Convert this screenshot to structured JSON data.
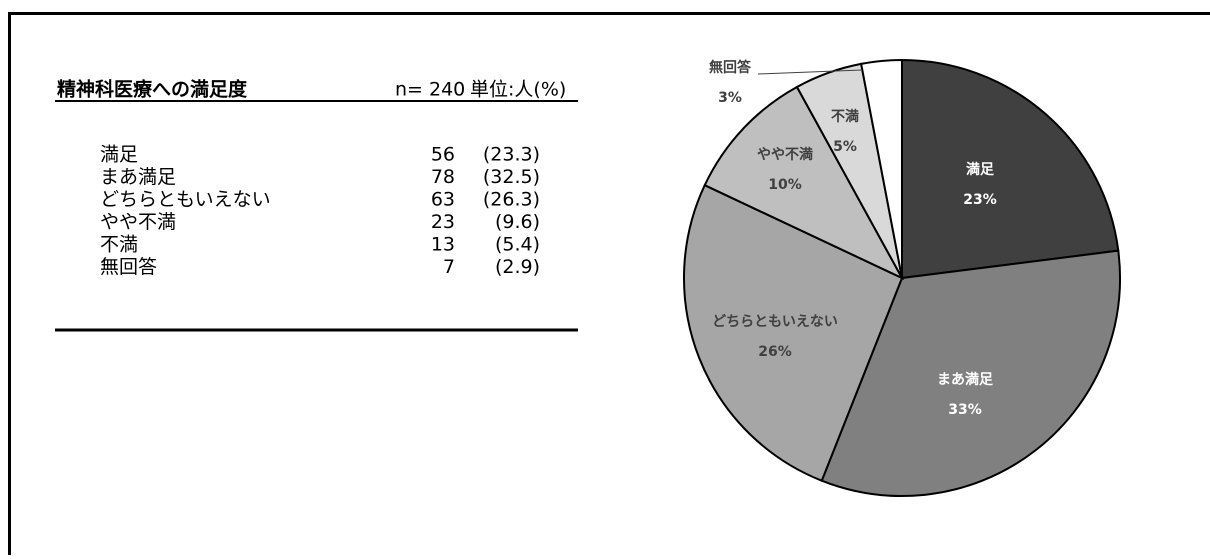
{
  "table": {
    "title": "精神科医療への満足度",
    "n": "n= 240",
    "unit": "単位:人(%)",
    "rows": [
      {
        "label": "満足",
        "count": 56,
        "percent": "(23.3)"
      },
      {
        "label": "まあ満足",
        "count": 78,
        "percent": "(32.5)"
      },
      {
        "label": "どちらともいえない",
        "count": 63,
        "percent": "(26.3)"
      },
      {
        "label": "やや不満",
        "count": 23,
        "percent": "(9.6)"
      },
      {
        "label": "不満",
        "count": 13,
        "percent": "(5.4)"
      },
      {
        "label": "無回答",
        "count": 7,
        "percent": "(2.9)"
      }
    ]
  },
  "chart_data": {
    "type": "pie",
    "categories": [
      "満足",
      "まあ満足",
      "どちらともいえない",
      "やや不満",
      "不満",
      "無回答"
    ],
    "values": [
      23,
      33,
      26,
      10,
      5,
      3
    ],
    "value_labels": [
      "23%",
      "33%",
      "26%",
      "10%",
      "5%",
      "3%"
    ],
    "colors": [
      "#404040",
      "#808080",
      "#a6a6a6",
      "#bfbfbf",
      "#d9d9d9",
      "#ffffff"
    ]
  }
}
